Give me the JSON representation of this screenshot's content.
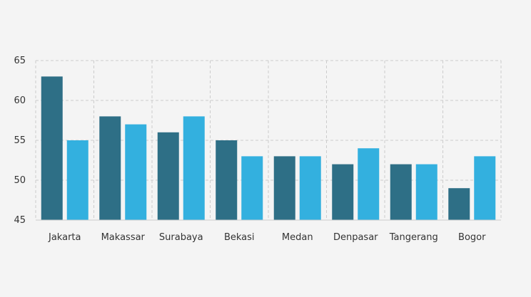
{
  "chart_data": {
    "type": "bar",
    "categories": [
      "Jakarta",
      "Makassar",
      "Surabaya",
      "Bekasi",
      "Medan",
      "Denpasar",
      "Tangerang",
      "Bogor"
    ],
    "series": [
      {
        "values": [
          63,
          58,
          56,
          55,
          53,
          52,
          52,
          49
        ],
        "color": "#2e6f86"
      },
      {
        "values": [
          55,
          57,
          58,
          53,
          53,
          54,
          52,
          53
        ],
        "color": "#33b0df"
      }
    ],
    "ylim": [
      45,
      65
    ],
    "yticks": [
      45,
      50,
      55,
      60,
      65
    ],
    "grid": true,
    "grid_style": "dashed",
    "grid_color": "#cccccc",
    "legend": "none"
  }
}
